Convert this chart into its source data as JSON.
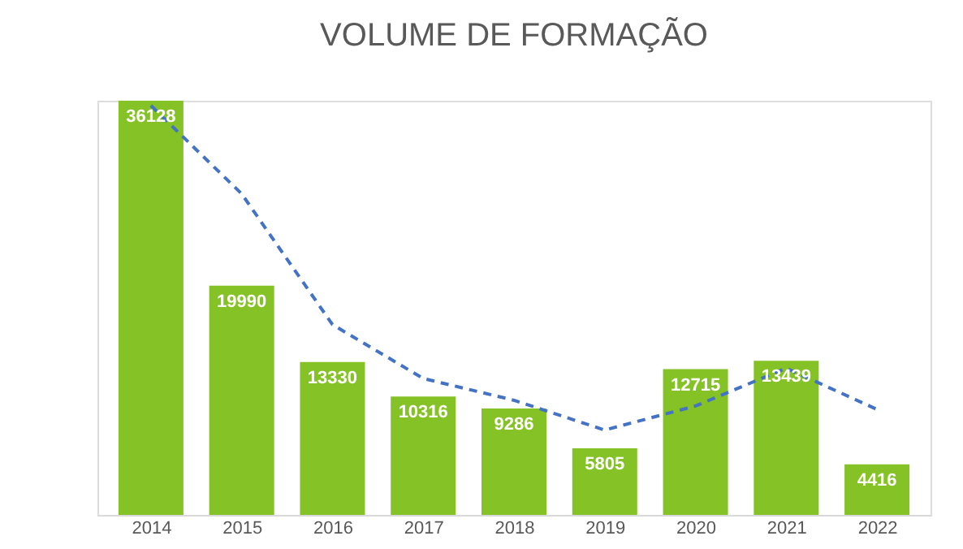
{
  "chart_data": {
    "type": "bar",
    "title": "VOLUME DE FORMAÇÃO",
    "categories": [
      "2014",
      "2015",
      "2016",
      "2017",
      "2018",
      "2019",
      "2020",
      "2021",
      "2022"
    ],
    "series": [
      {
        "color": "#84c225",
        "values": [
          36128,
          19990,
          13330,
          10316,
          9286,
          5805,
          12715,
          13439,
          4416
        ],
        "value_labels": [
          "36128",
          "19990",
          "13330",
          "10316",
          "9286",
          "5805",
          "12715",
          "13439",
          "4416"
        ]
      },
      {
        "type": "line",
        "color": "#4472c4",
        "line_style": "dashed",
        "values": [
          35700,
          28000,
          16600,
          11900,
          10000,
          7400,
          9500,
          12800,
          9200
        ]
      }
    ],
    "grid": false,
    "tick_labels": "x"
  }
}
